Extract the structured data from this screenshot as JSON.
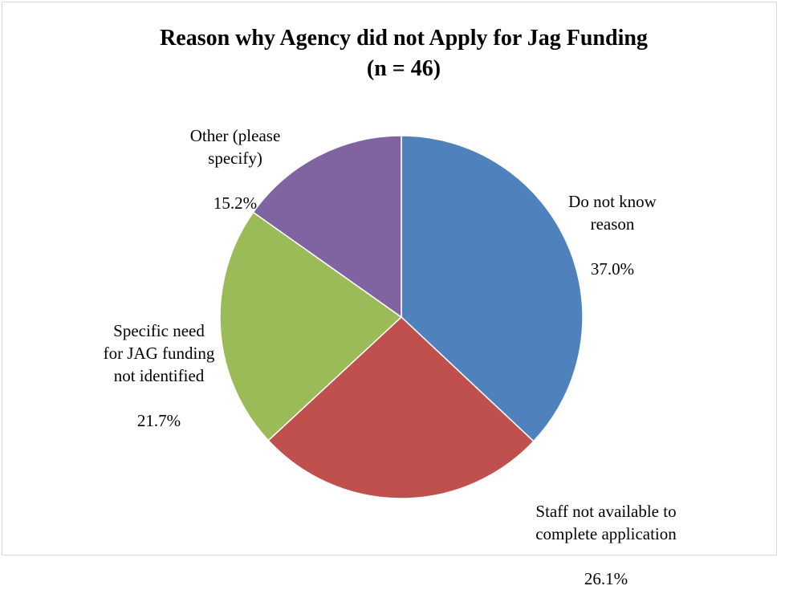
{
  "chart_data": {
    "type": "pie",
    "title": "Reason why Agency did not Apply for Jag Funding",
    "subtitle": "(n = 46)",
    "slices": [
      {
        "label": "Do not know reason",
        "display_label": "Do not know\nreason",
        "value": 37.0,
        "value_label": "37.0%",
        "color": "#4f81bd"
      },
      {
        "label": "Staff not available to complete application",
        "display_label": "Staff not available to\ncomplete application",
        "value": 26.1,
        "value_label": "26.1%",
        "color": "#c0504d"
      },
      {
        "label": "Specific need for JAG funding not identified",
        "display_label": "Specific need\nfor JAG funding\nnot identified",
        "value": 21.7,
        "value_label": "21.7%",
        "color": "#9bbb59"
      },
      {
        "label": "Other (please specify)",
        "display_label": "Other (please\nspecify)",
        "value": 15.2,
        "value_label": "15.2%",
        "color": "#8064a2"
      }
    ]
  }
}
